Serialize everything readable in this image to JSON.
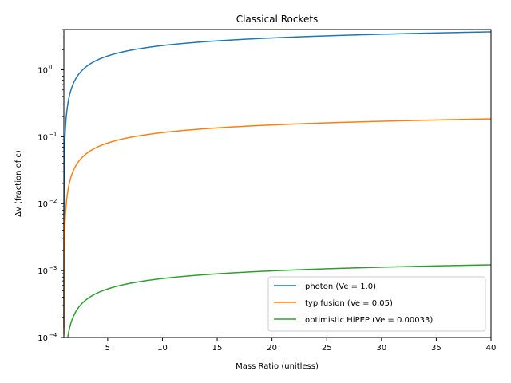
{
  "chart_data": {
    "type": "line",
    "title": "Classical Rockets",
    "xlabel": "Mass Ratio (unitless)",
    "ylabel": "Δv (fraction of c)",
    "xlim": [
      1,
      40
    ],
    "ylim": [
      0.0001,
      4
    ],
    "yscale": "log",
    "grid": false,
    "legend_position": "lower-right",
    "x_ticks": [
      5,
      10,
      15,
      20,
      25,
      30,
      35,
      40
    ],
    "y_ticks": [
      {
        "value": 0.0001,
        "label": "10−4",
        "base": "10",
        "exp": "−4"
      },
      {
        "value": 0.001,
        "label": "10−3",
        "base": "10",
        "exp": "−3"
      },
      {
        "value": 0.01,
        "label": "10−2",
        "base": "10",
        "exp": "−2"
      },
      {
        "value": 0.1,
        "label": "10−1",
        "base": "10",
        "exp": "−1"
      },
      {
        "value": 1,
        "label": "100",
        "base": "10",
        "exp": "0"
      }
    ],
    "series": [
      {
        "name": "photon (Ve = 1.0)",
        "ve": 1.0,
        "color": "#1f77b4",
        "x": [
          1.01,
          1.1,
          1.5,
          2,
          3,
          5,
          10,
          15,
          20,
          25,
          30,
          35,
          40
        ],
        "y": [
          0.00995,
          0.0953,
          0.405,
          0.693,
          1.099,
          1.609,
          2.303,
          2.708,
          2.996,
          3.219,
          3.401,
          3.555,
          3.689
        ]
      },
      {
        "name": "typ fusion (Ve = 0.05)",
        "ve": 0.05,
        "color": "#ff7f0e",
        "x": [
          1.01,
          1.1,
          1.5,
          2,
          3,
          5,
          10,
          15,
          20,
          25,
          30,
          35,
          40
        ],
        "y": [
          0.000498,
          0.00477,
          0.0203,
          0.0347,
          0.0549,
          0.0805,
          0.115,
          0.135,
          0.15,
          0.161,
          0.17,
          0.178,
          0.184
        ]
      },
      {
        "name": "optimistic HiPEP (Ve = 0.00033)",
        "ve": 0.00033,
        "color": "#2ca02c",
        "x": [
          1.35,
          1.5,
          2,
          3,
          5,
          10,
          15,
          20,
          25,
          30,
          35,
          40
        ],
        "y": [
          9.9e-05,
          0.000134,
          0.000229,
          0.000363,
          0.000531,
          0.00076,
          0.000894,
          0.000989,
          0.001062,
          0.001122,
          0.001173,
          0.001217
        ]
      }
    ]
  }
}
